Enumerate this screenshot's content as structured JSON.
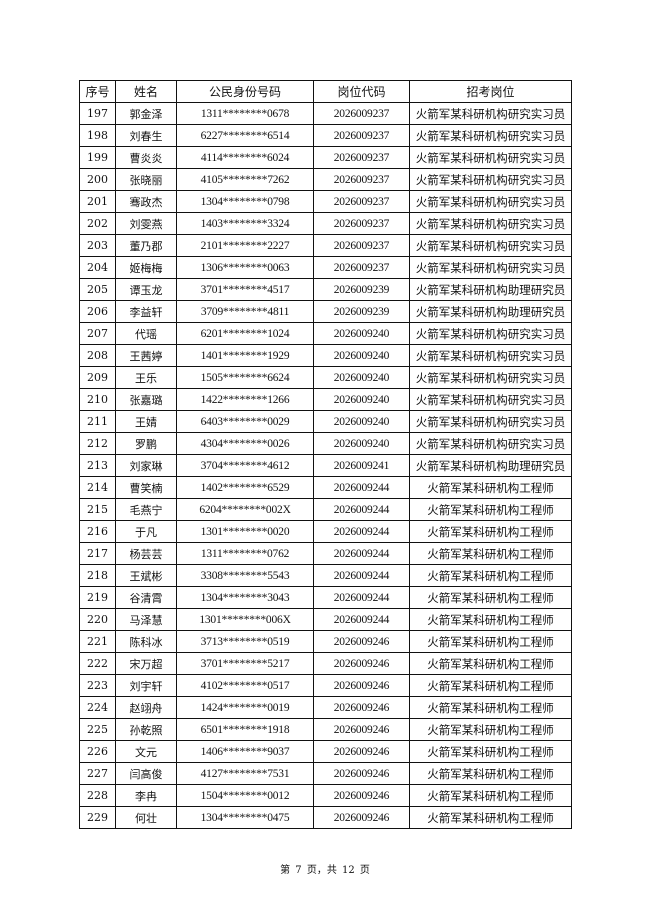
{
  "table": {
    "headers": [
      "序号",
      "姓名",
      "公民身份号码",
      "岗位代码",
      "招考岗位"
    ],
    "rows": [
      [
        "197",
        "郭金泽",
        "1311********0678",
        "2026009237",
        "火箭军某科研机构研究实习员"
      ],
      [
        "198",
        "刘春生",
        "6227********6514",
        "2026009237",
        "火箭军某科研机构研究实习员"
      ],
      [
        "199",
        "曹炎炎",
        "4114********6024",
        "2026009237",
        "火箭军某科研机构研究实习员"
      ],
      [
        "200",
        "张晓丽",
        "4105********7262",
        "2026009237",
        "火箭军某科研机构研究实习员"
      ],
      [
        "201",
        "骞政杰",
        "1304********0798",
        "2026009237",
        "火箭军某科研机构研究实习员"
      ],
      [
        "202",
        "刘雯燕",
        "1403********3324",
        "2026009237",
        "火箭军某科研机构研究实习员"
      ],
      [
        "203",
        "董乃郡",
        "2101********2227",
        "2026009237",
        "火箭军某科研机构研究实习员"
      ],
      [
        "204",
        "姬梅梅",
        "1306********0063",
        "2026009237",
        "火箭军某科研机构研究实习员"
      ],
      [
        "205",
        "谭玉龙",
        "3701********4517",
        "2026009239",
        "火箭军某科研机构助理研究员"
      ],
      [
        "206",
        "李益轩",
        "3709********4811",
        "2026009239",
        "火箭军某科研机构助理研究员"
      ],
      [
        "207",
        "代瑶",
        "6201********1024",
        "2026009240",
        "火箭军某科研机构研究实习员"
      ],
      [
        "208",
        "王茜婷",
        "1401********1929",
        "2026009240",
        "火箭军某科研机构研究实习员"
      ],
      [
        "209",
        "王乐",
        "1505********6624",
        "2026009240",
        "火箭军某科研机构研究实习员"
      ],
      [
        "210",
        "张嘉璐",
        "1422********1266",
        "2026009240",
        "火箭军某科研机构研究实习员"
      ],
      [
        "211",
        "王婧",
        "6403********0029",
        "2026009240",
        "火箭军某科研机构研究实习员"
      ],
      [
        "212",
        "罗鹏",
        "4304********0026",
        "2026009240",
        "火箭军某科研机构研究实习员"
      ],
      [
        "213",
        "刘家琳",
        "3704********4612",
        "2026009241",
        "火箭军某科研机构助理研究员"
      ],
      [
        "214",
        "曹笑楠",
        "1402********6529",
        "2026009244",
        "火箭军某科研机构工程师"
      ],
      [
        "215",
        "毛燕宁",
        "6204********002X",
        "2026009244",
        "火箭军某科研机构工程师"
      ],
      [
        "216",
        "于凡",
        "1301********0020",
        "2026009244",
        "火箭军某科研机构工程师"
      ],
      [
        "217",
        "杨芸芸",
        "1311********0762",
        "2026009244",
        "火箭军某科研机构工程师"
      ],
      [
        "218",
        "王斌彬",
        "3308********5543",
        "2026009244",
        "火箭军某科研机构工程师"
      ],
      [
        "219",
        "谷清霄",
        "1304********3043",
        "2026009244",
        "火箭军某科研机构工程师"
      ],
      [
        "220",
        "马泽慧",
        "1301********006X",
        "2026009244",
        "火箭军某科研机构工程师"
      ],
      [
        "221",
        "陈科冰",
        "3713********0519",
        "2026009246",
        "火箭军某科研机构工程师"
      ],
      [
        "222",
        "宋万超",
        "3701********5217",
        "2026009246",
        "火箭军某科研机构工程师"
      ],
      [
        "223",
        "刘宇轩",
        "4102********0517",
        "2026009246",
        "火箭军某科研机构工程师"
      ],
      [
        "224",
        "赵翊舟",
        "1424********0019",
        "2026009246",
        "火箭军某科研机构工程师"
      ],
      [
        "225",
        "孙乾照",
        "6501********1918",
        "2026009246",
        "火箭军某科研机构工程师"
      ],
      [
        "226",
        "文元",
        "1406********9037",
        "2026009246",
        "火箭军某科研机构工程师"
      ],
      [
        "227",
        "闫高俊",
        "4127********7531",
        "2026009246",
        "火箭军某科研机构工程师"
      ],
      [
        "228",
        "李冉",
        "1504********0012",
        "2026009246",
        "火箭军某科研机构工程师"
      ],
      [
        "229",
        "何壮",
        "1304********0475",
        "2026009246",
        "火箭军某科研机构工程师"
      ]
    ]
  },
  "footer": {
    "page_label": "第 7 页，共 12 页"
  }
}
